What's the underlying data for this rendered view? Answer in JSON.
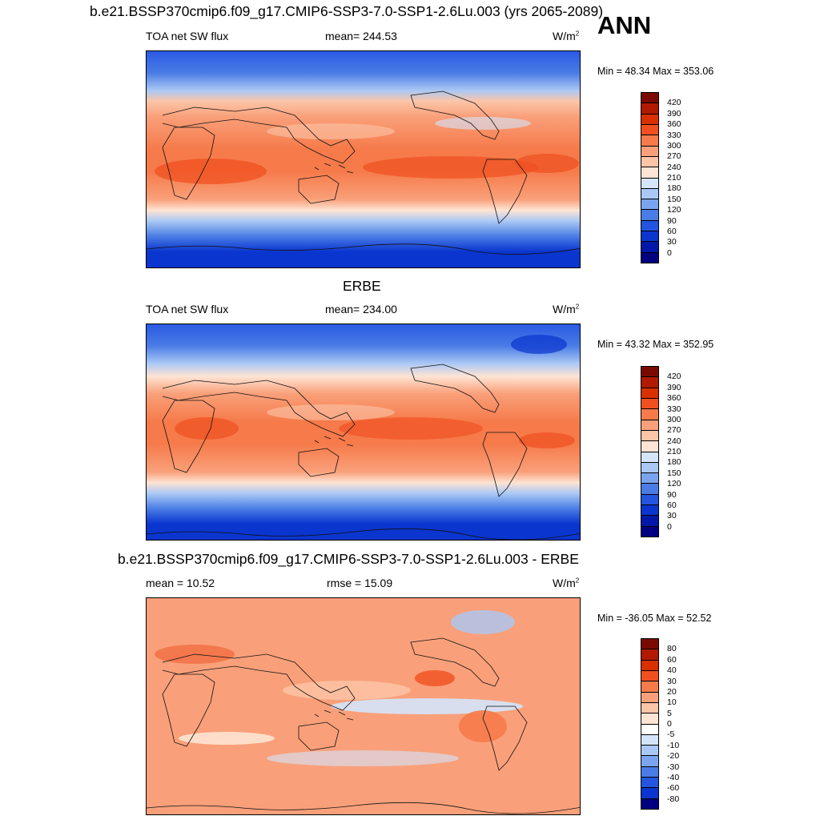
{
  "header": {
    "title": "b.e21.BSSP370cmip6.f09_g17.CMIP6-SSP3-7.0-SSP1-2.6Lu.003 (yrs 2065-2089)",
    "season": "ANN"
  },
  "panels": [
    {
      "title": "",
      "left_label": "TOA net SW flux",
      "center_label": "mean= 244.53",
      "units": "W/m",
      "units_exp": "2",
      "minmax": "Min =  48.34 Max = 353.06"
    },
    {
      "title": "ERBE",
      "left_label": "TOA net SW flux",
      "center_label": "mean= 234.00",
      "units": "W/m",
      "units_exp": "2",
      "minmax": "Min =  43.32 Max = 352.95"
    },
    {
      "title": "b.e21.BSSP370cmip6.f09_g17.CMIP6-SSP3-7.0-SSP1-2.6Lu.003 - ERBE",
      "left_label": "mean =  10.52",
      "center_label": "rmse =  15.09",
      "units": "W/m",
      "units_exp": "2",
      "minmax": "Min = -36.05 Max =  52.52"
    }
  ],
  "colorbars": {
    "abs_labels": [
      "420",
      "390",
      "360",
      "330",
      "300",
      "270",
      "240",
      "210",
      "180",
      "150",
      "120",
      "90",
      "60",
      "30",
      "0"
    ],
    "abs_colors": [
      "#7a0a00",
      "#b11a00",
      "#d93000",
      "#f05020",
      "#f67a4a",
      "#f9a07a",
      "#fcc5a8",
      "#fee4d4",
      "#d4e4fb",
      "#aac8f5",
      "#7aa5ee",
      "#4a7ce5",
      "#2355e0",
      "#0a35cf",
      "#0018a8",
      "#000080"
    ],
    "diff_labels": [
      "80",
      "60",
      "40",
      "30",
      "20",
      "10",
      "5",
      "0",
      "-5",
      "-10",
      "-20",
      "-30",
      "-40",
      "-60",
      "-80"
    ],
    "diff_colors": [
      "#7a0a00",
      "#b11a00",
      "#d93000",
      "#f05020",
      "#f67a4a",
      "#f9a07a",
      "#fcc5a8",
      "#fee4d4",
      "#ffffff",
      "#d4e4fb",
      "#aac8f5",
      "#7aa5ee",
      "#4a7ce5",
      "#2355e0",
      "#0a35cf",
      "#000080"
    ]
  }
}
